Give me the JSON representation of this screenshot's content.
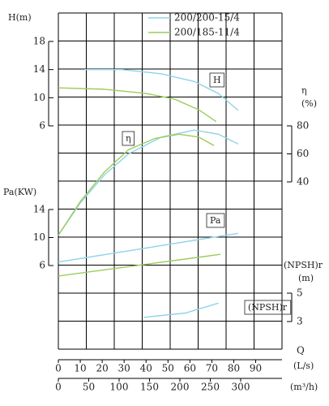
{
  "chart_data": {
    "type": "line",
    "legend": "top",
    "xlabel": "Q",
    "xunit": "(L/s)",
    "xlim": [
      0,
      102
    ],
    "xticks": [
      0,
      10,
      20,
      30,
      40,
      50,
      60,
      70,
      80,
      90
    ],
    "x2unit": "(m³/h)",
    "x2lim": [
      0,
      368
    ],
    "x2ticks": [
      0,
      50,
      100,
      150,
      200,
      250,
      300
    ],
    "yaxes": [
      {
        "label": "H(m)",
        "tag": "H",
        "lim": [
          6,
          18
        ],
        "ticks": [
          6,
          10,
          14,
          18
        ]
      },
      {
        "label": "η",
        "unit": "(%)",
        "tag": "η",
        "lim": [
          40,
          80
        ],
        "ticks": [
          40,
          60,
          80
        ]
      },
      {
        "label": "Pa(KW)",
        "tag": "Pa",
        "lim": [
          6,
          14
        ],
        "ticks": [
          6,
          10,
          14
        ]
      },
      {
        "label": "(NPSH)r",
        "unit": "(m)",
        "tag": "(NPSH)r",
        "lim": [
          3,
          5
        ],
        "ticks": [
          3,
          5
        ]
      }
    ],
    "series": [
      {
        "name": "200/200-15/4",
        "color": "#8fd3ea",
        "curves": [
          {
            "axis": 0,
            "x": [
              12,
              29,
              47,
              62,
              73,
              82
            ],
            "values": [
              14.0,
              14.0,
              13.4,
              12.3,
              10.6,
              8.2
            ]
          },
          {
            "axis": 1,
            "x": [
              0,
              10,
              21,
              32,
              47,
              62,
              73,
              82
            ],
            "values": [
              2,
              25,
              45,
              60,
              72,
              77,
              74,
              67
            ]
          },
          {
            "axis": 2,
            "x": [
              0,
              82
            ],
            "values": [
              6.5,
              10.6
            ]
          },
          {
            "axis": 3,
            "x": [
              39,
              58,
              73
            ],
            "values": [
              3.3,
              3.6,
              4.3
            ]
          }
        ]
      },
      {
        "name": "200/185-11/4",
        "color": "#9ccc5a",
        "curves": [
          {
            "axis": 0,
            "x": [
              0,
              21,
              40,
              53,
              64,
              72
            ],
            "values": [
              11.4,
              11.2,
              10.6,
              9.8,
              8.3,
              6.6
            ]
          },
          {
            "axis": 1,
            "x": [
              0,
              10,
              21,
              32,
              44,
              55,
              64,
              71
            ],
            "values": [
              2,
              26,
              47,
              63,
              71,
              74,
              72,
              66
            ]
          },
          {
            "axis": 2,
            "x": [
              0,
              74
            ],
            "values": [
              4.5,
              7.6
            ]
          }
        ]
      }
    ]
  }
}
